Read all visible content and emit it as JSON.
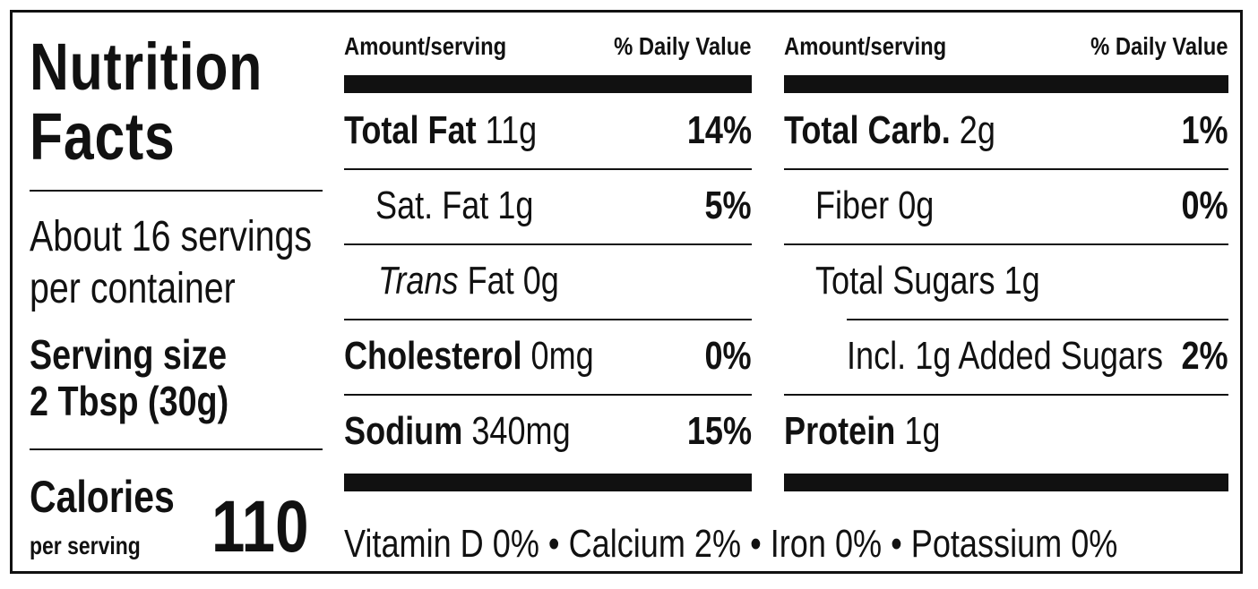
{
  "title": {
    "line1": "Nutrition",
    "line2": "Facts"
  },
  "servings": {
    "count_line1": "About 16 servings",
    "count_line2": "per container",
    "size_label": "Serving size",
    "size_value": "2 Tbsp (30g)"
  },
  "calories": {
    "label": "Calories",
    "sub": "per serving",
    "value": "110"
  },
  "headers": {
    "amount": "Amount/serving",
    "daily_value": "% Daily Value"
  },
  "left_column": [
    {
      "bold": "Total Fat",
      "amount": " 11g",
      "pct": "14%"
    },
    {
      "bold": "",
      "amount": "Sat. Fat 1g",
      "pct": "5%"
    },
    {
      "italic": "Trans",
      "amount": " Fat 0g",
      "pct": ""
    },
    {
      "bold": "Cholesterol",
      "amount": " 0mg",
      "pct": "0%"
    },
    {
      "bold": "Sodium",
      "amount": " 340mg",
      "pct": "15%"
    }
  ],
  "right_column": [
    {
      "bold": "Total Carb.",
      "amount": " 2g",
      "pct": "1%"
    },
    {
      "bold": "",
      "amount": "Fiber 0g",
      "pct": "0%"
    },
    {
      "bold": "",
      "amount": "Total Sugars 1g",
      "pct": ""
    },
    {
      "bold": "",
      "amount": "Incl. 1g Added Sugars",
      "pct": "2%"
    },
    {
      "bold": "Protein",
      "amount": " 1g",
      "pct": ""
    }
  ],
  "vitamins": "Vitamin D 0% • Calcium 2% • Iron 0% • Potassium 0%"
}
